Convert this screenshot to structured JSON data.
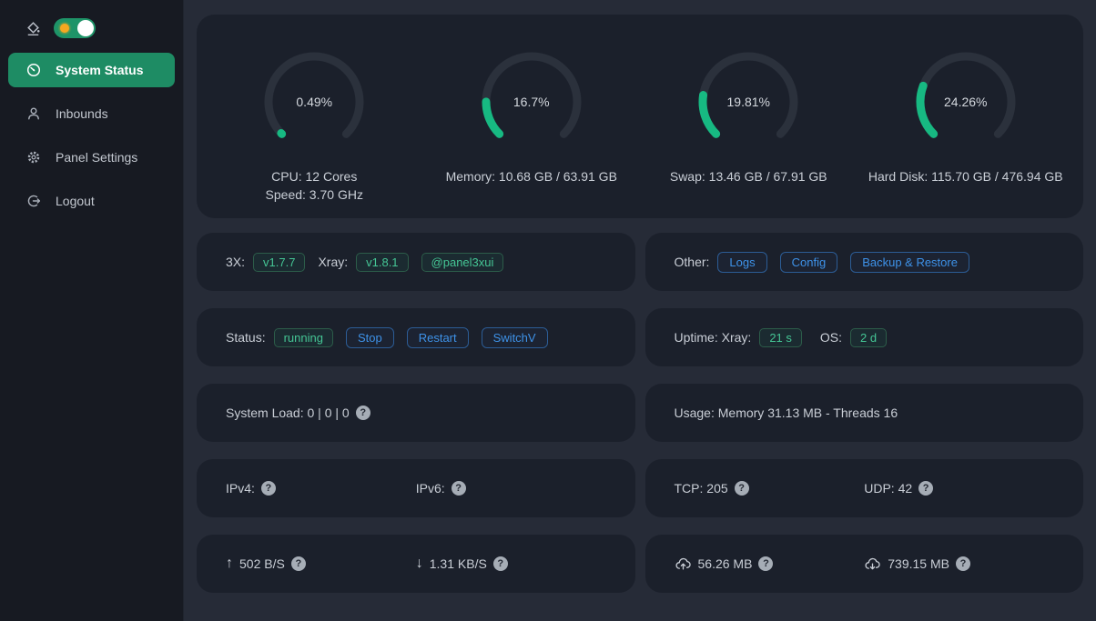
{
  "colors": {
    "page_bg": "#262b37",
    "sidebar_bg": "#171a22",
    "card_bg": "#1b202b",
    "accent_green": "#1e8c64",
    "gauge_green": "#17b982",
    "gauge_track": "#2b313c",
    "tag_green_text": "#45c695",
    "button_blue_text": "#3e92e8",
    "toggle_sun_orange": "#f6a821"
  },
  "sidebar": {
    "theme_toggle": {
      "state": "on",
      "icon": "theme-paint-icon",
      "knob_icon": "sun-icon"
    },
    "items": [
      {
        "label": "System Status",
        "icon": "dashboard-icon",
        "active": true
      },
      {
        "label": "Inbounds",
        "icon": "user-icon",
        "active": false
      },
      {
        "label": "Panel Settings",
        "icon": "gear-icon",
        "active": false
      },
      {
        "label": "Logout",
        "icon": "logout-icon",
        "active": false
      }
    ]
  },
  "chart_data": {
    "type": "gauge-set",
    "gauges": [
      {
        "percent": 0.49,
        "percent_label": "0.49%",
        "lines": [
          "CPU: 12 Cores",
          "Speed: 3.70 GHz"
        ]
      },
      {
        "percent": 16.7,
        "percent_label": "16.7%",
        "lines": [
          "Memory: 10.68 GB / 63.91 GB"
        ]
      },
      {
        "percent": 19.81,
        "percent_label": "19.81%",
        "lines": [
          "Swap: 13.46 GB / 67.91 GB"
        ]
      },
      {
        "percent": 24.26,
        "percent_label": "24.26%",
        "lines": [
          "Hard Disk: 115.70 GB / 476.94 GB"
        ]
      }
    ],
    "arc_degrees": 270,
    "fill_color": "#17b982",
    "track_color": "#2b313c"
  },
  "version_row": {
    "label_3x": "3X:",
    "tag_3x": "v1.7.7",
    "label_xray": "Xray:",
    "tag_xray": "v1.8.1",
    "tag_telegram": "@panel3xui"
  },
  "other_row": {
    "label": "Other:",
    "buttons": [
      "Logs",
      "Config",
      "Backup & Restore"
    ]
  },
  "status_row": {
    "label": "Status:",
    "status_tag": "running",
    "buttons": [
      "Stop",
      "Restart",
      "SwitchV"
    ]
  },
  "uptime_row": {
    "label": "Uptime: Xray:",
    "xray_tag": "21 s",
    "os_label": "OS:",
    "os_tag": "2 d"
  },
  "load_row": {
    "text": "System Load: 0 | 0 | 0"
  },
  "usage_row": {
    "text": "Usage: Memory 31.13 MB - Threads 16"
  },
  "ip_row": {
    "ipv4_label": "IPv4:",
    "ipv6_label": "IPv6:"
  },
  "conn_row": {
    "tcp_label": "TCP: 205",
    "udp_label": "UDP: 42"
  },
  "speed_row": {
    "up_arrow": "↑",
    "up_label": "502 B/S",
    "down_arrow": "↓",
    "down_label": "1.31 KB/S"
  },
  "total_row": {
    "sent_label": "56.26 MB",
    "sent_icon": "cloud-upload-icon",
    "recv_label": "739.15 MB",
    "recv_icon": "cloud-download-icon"
  },
  "help_glyph": "?"
}
